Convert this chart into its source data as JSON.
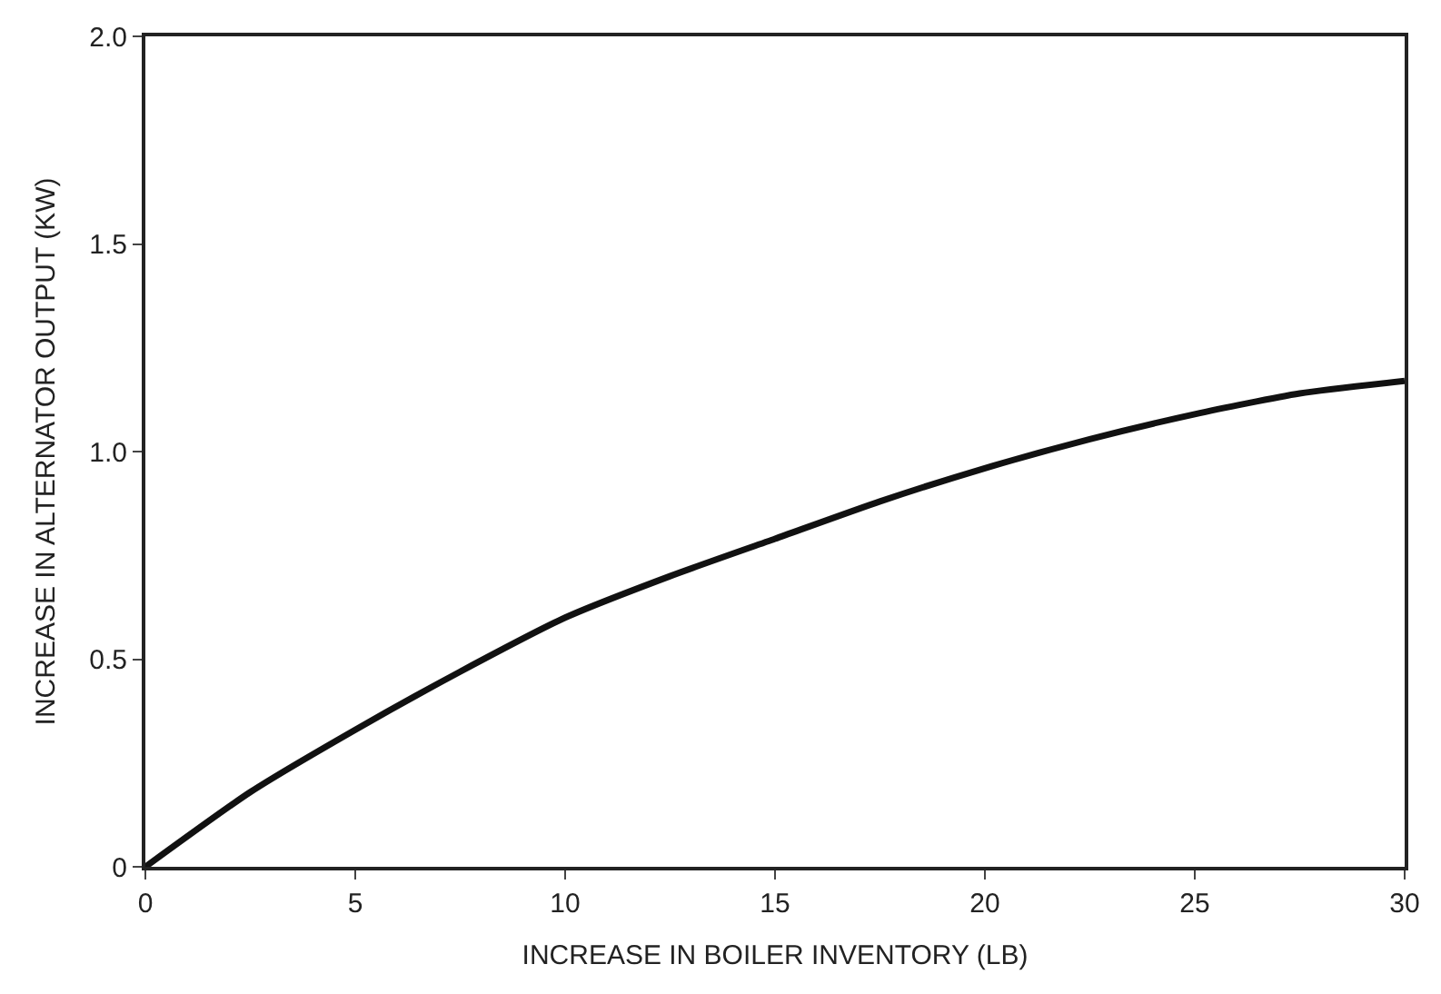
{
  "chart_data": {
    "type": "line",
    "xlabel": "INCREASE IN BOILER INVENTORY (LB)",
    "ylabel": "INCREASE IN ALTERNATOR OUTPUT (KW)",
    "x": [
      0,
      2.5,
      5,
      7.5,
      10,
      12.5,
      15,
      17.5,
      20,
      22.5,
      25,
      27.5,
      30
    ],
    "series": [
      {
        "color": "#111111",
        "values": [
          0,
          0.18,
          0.33,
          0.47,
          0.6,
          0.7,
          0.79,
          0.88,
          0.96,
          1.03,
          1.09,
          1.14,
          1.17
        ]
      }
    ],
    "xlim": [
      0,
      30
    ],
    "ylim": [
      0,
      2
    ],
    "xticks": [
      0,
      5,
      10,
      15,
      20,
      25,
      30
    ],
    "yticks": [
      0,
      {
        "value": 0.5,
        "label": "0.5"
      },
      {
        "value": 1,
        "label": "1.0"
      },
      {
        "value": 1.5,
        "label": "1.5"
      },
      {
        "value": 2,
        "label": "2.0"
      }
    ],
    "marker": "none",
    "line_style": "solid"
  }
}
